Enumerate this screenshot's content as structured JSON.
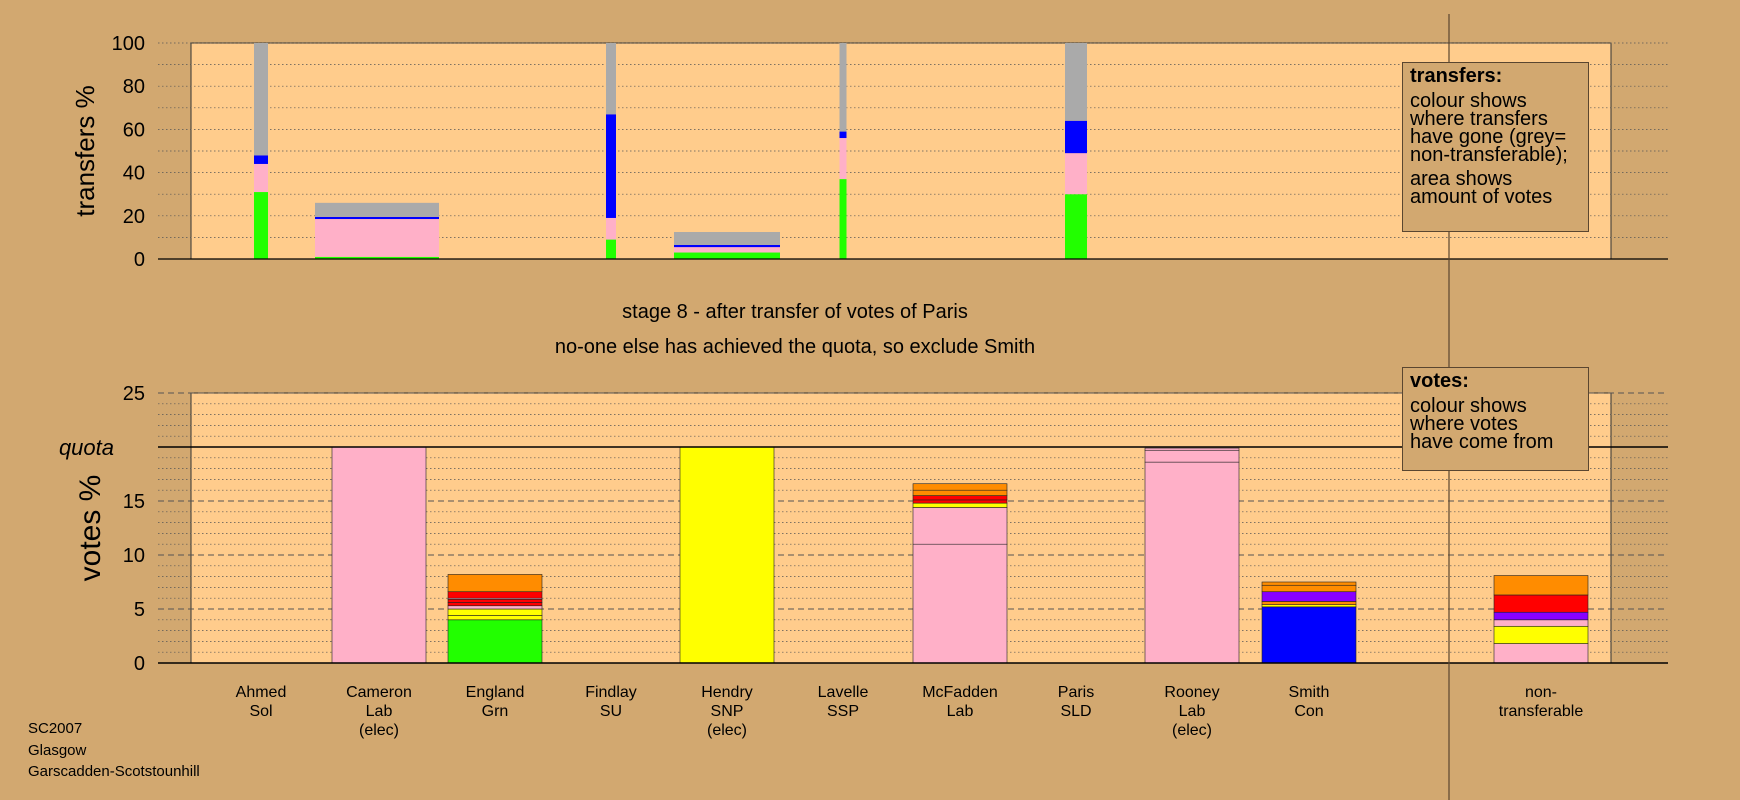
{
  "chart_data": [
    {
      "type": "bar",
      "stacked": true,
      "ylabel": "transfers %",
      "ylim": [
        0,
        100
      ],
      "yticks": [
        0,
        20,
        40,
        60,
        80,
        100
      ],
      "bars": [
        {
          "candidate": "Ahmed",
          "segments": [
            {
              "color": "#22ff00",
              "value": 31
            },
            {
              "color": "#ffb0c8",
              "value": 13
            },
            {
              "color": "#0000ff",
              "value": 4
            },
            {
              "color": "#aaaaaa",
              "value": 52
            }
          ]
        },
        {
          "candidate": "Cameron",
          "segments": [
            {
              "color": "#22ff00",
              "value": 1
            },
            {
              "color": "#ffb0c8",
              "value": 17.5
            },
            {
              "color": "#0000ff",
              "value": 1
            },
            {
              "color": "#aaaaaa",
              "value": 6.5
            }
          ]
        },
        {
          "candidate": "Findlay",
          "segments": [
            {
              "color": "#22ff00",
              "value": 9
            },
            {
              "color": "#ffb0c8",
              "value": 10
            },
            {
              "color": "#0000ff",
              "value": 48
            },
            {
              "color": "#aaaaaa",
              "value": 33
            }
          ]
        },
        {
          "candidate": "Hendry",
          "segments": [
            {
              "color": "#22ff00",
              "value": 3
            },
            {
              "color": "#ffb0c8",
              "value": 2.5
            },
            {
              "color": "#0000ff",
              "value": 1
            },
            {
              "color": "#aaaaaa",
              "value": 6
            }
          ]
        },
        {
          "candidate": "Lavelle",
          "segments": [
            {
              "color": "#22ff00",
              "value": 37
            },
            {
              "color": "#ffb0c8",
              "value": 19
            },
            {
              "color": "#0000ff",
              "value": 3
            },
            {
              "color": "#aaaaaa",
              "value": 41
            }
          ]
        },
        {
          "candidate": "Paris",
          "segments": [
            {
              "color": "#22ff00",
              "value": 30
            },
            {
              "color": "#ffb0c8",
              "value": 19
            },
            {
              "color": "#0000ff",
              "value": 15
            },
            {
              "color": "#aaaaaa",
              "value": 36
            }
          ]
        }
      ]
    },
    {
      "type": "bar",
      "stacked": true,
      "ylabel": "votes %",
      "ylim": [
        0,
        25
      ],
      "yticks": [
        0,
        5,
        10,
        15,
        20,
        25
      ],
      "quota": 20,
      "quota_label": "quota",
      "categories": [
        [
          "Ahmed",
          "Sol"
        ],
        [
          "Cameron",
          "Lab",
          "(elec)"
        ],
        [
          "England",
          "Grn"
        ],
        [
          "Findlay",
          "SU"
        ],
        [
          "Hendry",
          "SNP",
          "(elec)"
        ],
        [
          "Lavelle",
          "SSP"
        ],
        [
          "McFadden",
          "Lab"
        ],
        [
          "Paris",
          "SLD"
        ],
        [
          "Rooney",
          "Lab",
          "(elec)"
        ],
        [
          "Smith",
          "Con"
        ],
        [
          "non-",
          "transferable"
        ]
      ],
      "bars": [
        {
          "candidate": "Cameron",
          "segments": [
            {
              "color": "#ffb0c8",
              "value": 20
            }
          ]
        },
        {
          "candidate": "England",
          "segments": [
            {
              "color": "#22ff00",
              "value": 4.0
            },
            {
              "color": "#ffff00",
              "value": 0.4
            },
            {
              "color": "#ffff00",
              "value": 0.6
            },
            {
              "color": "#ffb0c8",
              "value": 0.3
            },
            {
              "color": "#ff0000",
              "value": 0.3
            },
            {
              "color": "#ff0000",
              "value": 0.3
            },
            {
              "color": "#ffb0c8",
              "value": 0.1
            },
            {
              "color": "#ff0000",
              "value": 0.6
            },
            {
              "color": "#ff8c00",
              "value": 1.6
            }
          ]
        },
        {
          "candidate": "Hendry",
          "segments": [
            {
              "color": "#ffff00",
              "value": 20
            }
          ]
        },
        {
          "candidate": "McFadden",
          "segments": [
            {
              "color": "#ffb0c8",
              "value": 11.0
            },
            {
              "color": "#ffb0c8",
              "value": 3.4
            },
            {
              "color": "#ffff00",
              "value": 0.4
            },
            {
              "color": "#ff0000",
              "value": 0.3
            },
            {
              "color": "#ff0000",
              "value": 0.4
            },
            {
              "color": "#ff8c00",
              "value": 0.5
            },
            {
              "color": "#ff8c00",
              "value": 0.6
            }
          ]
        },
        {
          "candidate": "Rooney",
          "segments": [
            {
              "color": "#ffb0c8",
              "value": 18.6
            },
            {
              "color": "#ffb0c8",
              "value": 1.1
            },
            {
              "color": "#ffb0c8",
              "value": 0.2
            }
          ]
        },
        {
          "candidate": "Smith",
          "segments": [
            {
              "color": "#0000ff",
              "value": 5.2
            },
            {
              "color": "#ffff00",
              "value": 0.2
            },
            {
              "color": "#ff8c00",
              "value": 0.3
            },
            {
              "color": "#8800ff",
              "value": 0.9
            },
            {
              "color": "#ff8c00",
              "value": 0.6
            },
            {
              "color": "#ff8c00",
              "value": 0.3
            }
          ]
        },
        {
          "candidate": "non-transferable",
          "segments": [
            {
              "color": "#ffb0c8",
              "value": 1.8
            },
            {
              "color": "#ffff00",
              "value": 1.6
            },
            {
              "color": "#ffb0c8",
              "value": 0.6
            },
            {
              "color": "#8800ff",
              "value": 0.7
            },
            {
              "color": "#ff0000",
              "value": 1.6
            },
            {
              "color": "#ff8c00",
              "value": 1.8
            }
          ]
        }
      ]
    }
  ],
  "stage_text": "stage 8 - after transfer of votes of Paris",
  "action_text": "no-one else has achieved the quota, so exclude Smith",
  "transfers_legend": {
    "title": "transfers:",
    "lines1": [
      "colour shows",
      "where transfers",
      "have gone (grey=",
      "non-transferable);"
    ],
    "lines2": [
      "area shows",
      "amount of votes"
    ]
  },
  "votes_legend": {
    "title": "votes:",
    "lines": [
      "colour shows",
      "where votes",
      "have come from"
    ]
  },
  "footer": [
    "SC2007",
    "Glasgow",
    "Garscadden-Scotstounhill"
  ],
  "colors": {
    "background": "#d2a870",
    "plot_area": "#ffcc8c",
    "grey": "#aaaaaa",
    "green": "#22ff00",
    "pink": "#ffb0c8",
    "blue": "#0000ff",
    "yellow": "#ffff00",
    "red": "#ff0000",
    "orange": "#ff8c00",
    "purple": "#8800ff"
  }
}
